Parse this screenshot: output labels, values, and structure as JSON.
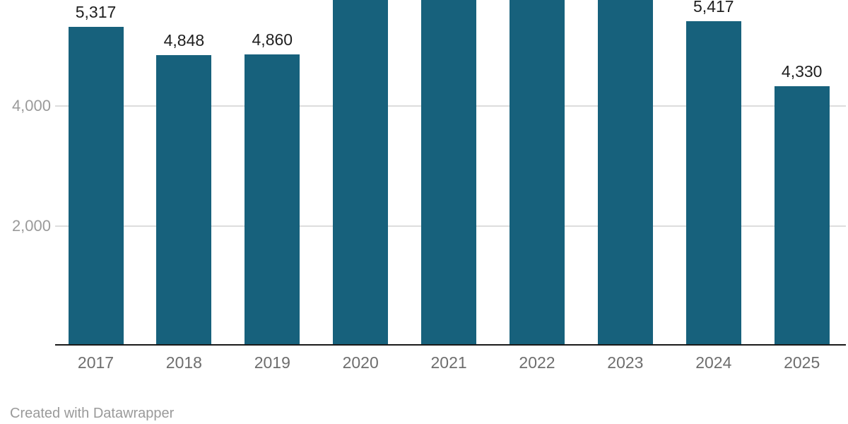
{
  "chart_data": {
    "type": "bar",
    "categories": [
      "2017",
      "2018",
      "2019",
      "2020",
      "2021",
      "2022",
      "2023",
      "2024",
      "2025"
    ],
    "values": [
      5317,
      4848,
      4860,
      null,
      null,
      null,
      null,
      5417,
      4330
    ],
    "value_labels": [
      "5,317",
      "4,848",
      "4,860",
      "",
      "",
      "",
      "",
      "5,417",
      "4,330"
    ],
    "clipped_bars": [
      "2020",
      "2021",
      "2022",
      "2023"
    ],
    "y_ticks": [
      {
        "value": 2000,
        "label": "2,000"
      },
      {
        "value": 4000,
        "label": "4,000"
      }
    ],
    "ylim_visible": [
      0,
      5770
    ],
    "grid": true,
    "legend": "none",
    "bar_color": "#17617c"
  },
  "footer": {
    "credit": "Created with Datawrapper"
  },
  "colors": {
    "bar": "#17617c",
    "gridline": "#dddddd",
    "axis_line": "#1a1a1a",
    "y_tick_label": "#9a9a9a",
    "x_tick_label": "#6e6e6e",
    "value_label": "#1f1f1f",
    "credit_text": "#9a9a9a",
    "background": "#ffffff"
  }
}
